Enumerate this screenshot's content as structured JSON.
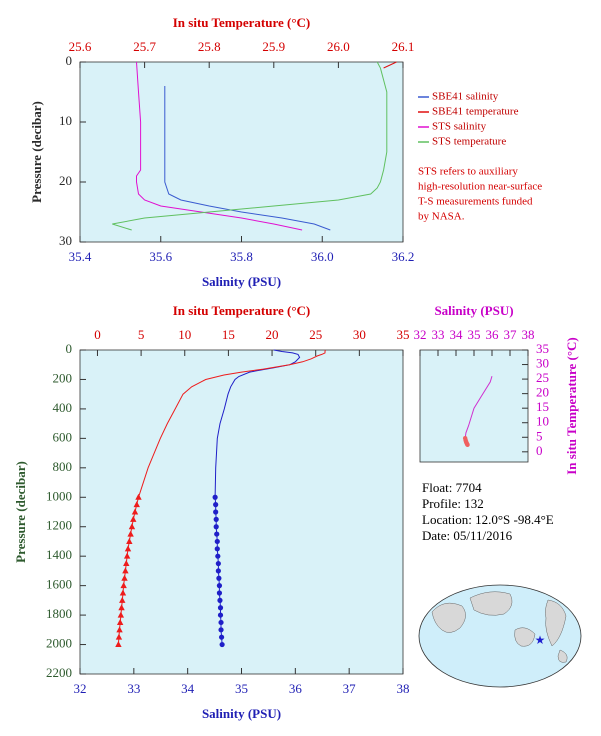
{
  "chart_data": [
    {
      "type": "line",
      "xlabel": "Salinity (PSU)",
      "x2label": "In situ Temperature (°C)",
      "ylabel": "Pressure (decibar)",
      "xlim": [
        35.4,
        36.2
      ],
      "xticks": [
        35.4,
        35.6,
        35.8,
        {
          "value": 36,
          "label": "36.0"
        },
        36.2
      ],
      "x2lim": [
        25.6,
        26.1
      ],
      "x2ticks": [
        25.6,
        25.7,
        25.8,
        25.9,
        {
          "value": 26,
          "label": "26.0"
        },
        26.1
      ],
      "ylim": [
        0,
        30
      ],
      "yticks": [
        0,
        10,
        20,
        30
      ],
      "y_inverted": true,
      "axis_colors": {
        "x": "#1f1fb4",
        "x2": "#d40000",
        "y": "#2a2a2a"
      },
      "background": "#d9f2f8",
      "legend": "right",
      "series": [
        {
          "name": "SBE41 salinity",
          "color": "#3a5bd0",
          "axis": "x",
          "x": [
            35.61,
            35.61,
            35.61,
            35.61,
            35.61,
            35.62,
            35.65,
            35.72,
            35.8,
            35.9,
            35.98,
            36.02
          ],
          "values": [
            4,
            6,
            10,
            15,
            20,
            22,
            23,
            24,
            25,
            26,
            27,
            28
          ]
        },
        {
          "name": "SBE41 temperature",
          "color": "#e01010",
          "axis": "x2",
          "x": [
            26.09,
            26.08,
            26.07
          ],
          "values": [
            0,
            0.5,
            1
          ]
        },
        {
          "name": "STS salinity",
          "color": "#e010d0",
          "axis": "x",
          "x": [
            35.54,
            35.545,
            35.55,
            35.55,
            35.55,
            35.54,
            35.54,
            35.545,
            35.56,
            35.6,
            35.7,
            35.8,
            35.88,
            35.95
          ],
          "values": [
            0,
            5,
            10,
            15,
            18,
            19,
            20,
            22,
            23,
            24,
            25,
            26,
            27,
            28
          ]
        },
        {
          "name": "STS temperature",
          "color": "#60c060",
          "axis": "x2",
          "x": [
            26.06,
            26.065,
            26.07,
            26.075,
            26.075,
            26.075,
            26.07,
            26.065,
            26.06,
            26.05,
            26.0,
            25.9,
            25.8,
            25.7,
            25.65,
            25.68
          ],
          "values": [
            0,
            1,
            3,
            5,
            10,
            15,
            18,
            20,
            21,
            22,
            23,
            24,
            25,
            26,
            27,
            28
          ]
        }
      ],
      "annotations": [
        "STS refers to auxiliary",
        "high-resolution near-surface",
        "T-S measurements funded",
        "by NASA."
      ]
    },
    {
      "type": "line",
      "xlabel": "Salinity (PSU)",
      "x2label": "In situ Temperature (°C)",
      "ylabel": "Pressure (decibar)",
      "xlim": [
        32,
        38
      ],
      "xticks": [
        32,
        33,
        34,
        35,
        36,
        37,
        38
      ],
      "x2lim": [
        -2,
        35
      ],
      "x2ticks": [
        0,
        5,
        10,
        15,
        20,
        25,
        30,
        35
      ],
      "ylim": [
        0,
        2200
      ],
      "yticks": [
        0,
        200,
        400,
        600,
        800,
        1000,
        1200,
        1400,
        1600,
        1800,
        2000,
        2200
      ],
      "y_inverted": true,
      "axis_colors": {
        "x": "#1f1fb4",
        "x2": "#d40000",
        "y": "#2e5a2e"
      },
      "background": "#d9f2f8",
      "series": [
        {
          "color": "#1f1fc8",
          "axis": "x",
          "x": [
            35.6,
            35.75,
            35.95,
            36.05,
            36.08,
            36.0,
            35.9,
            35.6,
            35.15,
            34.95,
            34.88,
            34.8,
            34.75,
            34.68,
            34.6,
            34.55,
            34.52,
            34.51
          ],
          "values": [
            0,
            10,
            20,
            30,
            50,
            80,
            100,
            120,
            150,
            180,
            200,
            250,
            300,
            400,
            500,
            600,
            800,
            1000
          ]
        },
        {
          "color": "#1f1fc8",
          "axis": "x",
          "marker": "circle",
          "x": [
            34.51,
            34.52,
            34.52,
            34.53,
            34.53,
            34.54,
            34.55,
            34.55,
            34.56,
            34.57,
            34.57,
            34.58,
            34.59,
            34.59,
            34.6,
            34.61,
            34.61,
            34.62,
            34.62,
            34.63,
            34.64
          ],
          "values": [
            1000,
            1050,
            1100,
            1150,
            1200,
            1250,
            1300,
            1350,
            1400,
            1450,
            1500,
            1550,
            1600,
            1650,
            1700,
            1750,
            1800,
            1850,
            1900,
            1950,
            2000
          ]
        },
        {
          "color": "#ee1c1c",
          "axis": "x2",
          "x": [
            26.1,
            26.07,
            26.06,
            25.7,
            25.2,
            24.5,
            23.5,
            22.0,
            19.0,
            16.5,
            14.5,
            12.4,
            10.8,
            9.8,
            8.9,
            8.0,
            7.2,
            5.8,
            4.7
          ],
          "values": [
            0,
            10,
            20,
            30,
            40,
            60,
            80,
            100,
            130,
            150,
            170,
            200,
            250,
            300,
            400,
            500,
            600,
            800,
            1000
          ]
        },
        {
          "color": "#ee1c1c",
          "axis": "x2",
          "marker": "triangle",
          "x": [
            4.7,
            4.5,
            4.3,
            4.1,
            3.95,
            3.8,
            3.65,
            3.5,
            3.4,
            3.3,
            3.2,
            3.1,
            3.0,
            2.92,
            2.84,
            2.76,
            2.68,
            2.6,
            2.53,
            2.46,
            2.4
          ],
          "values": [
            1000,
            1050,
            1100,
            1150,
            1200,
            1250,
            1300,
            1350,
            1400,
            1450,
            1500,
            1550,
            1600,
            1650,
            1700,
            1750,
            1800,
            1850,
            1900,
            1950,
            2000
          ]
        }
      ]
    },
    {
      "type": "scatter",
      "xlabel": "Salinity (PSU)",
      "ylabel": "In situ Temperature (°C)",
      "xlim": [
        32,
        38
      ],
      "xticks": [
        32,
        33,
        34,
        35,
        36,
        37,
        38
      ],
      "x_axis_position": "top",
      "ylim": [
        -3.5,
        35
      ],
      "yticks": [
        0,
        5,
        10,
        15,
        20,
        25,
        30,
        35
      ],
      "y_axis_position": "right",
      "axis_colors": {
        "x": "#c800c8",
        "y": "#c800c8"
      },
      "background": "#d9f2f8",
      "series": [
        {
          "color": "#d030d0",
          "x": [
            36.0,
            35.9,
            35.4,
            35.0,
            34.85,
            34.7,
            34.55,
            34.51
          ],
          "values": [
            26,
            24,
            19,
            15,
            12,
            9,
            6.5,
            4.7
          ]
        },
        {
          "color": "#f06060",
          "marker": "circle",
          "x": [
            34.51,
            34.53,
            34.55,
            34.57,
            34.59,
            34.61,
            34.63,
            34.64
          ],
          "values": [
            4.7,
            4.1,
            3.65,
            3.3,
            3.0,
            2.76,
            2.53,
            2.4
          ]
        }
      ]
    }
  ],
  "info": [
    "Float:  7704",
    "Profile:  132",
    "Location:  12.0°S  -98.4°E",
    "Date:  05/11/2016"
  ]
}
